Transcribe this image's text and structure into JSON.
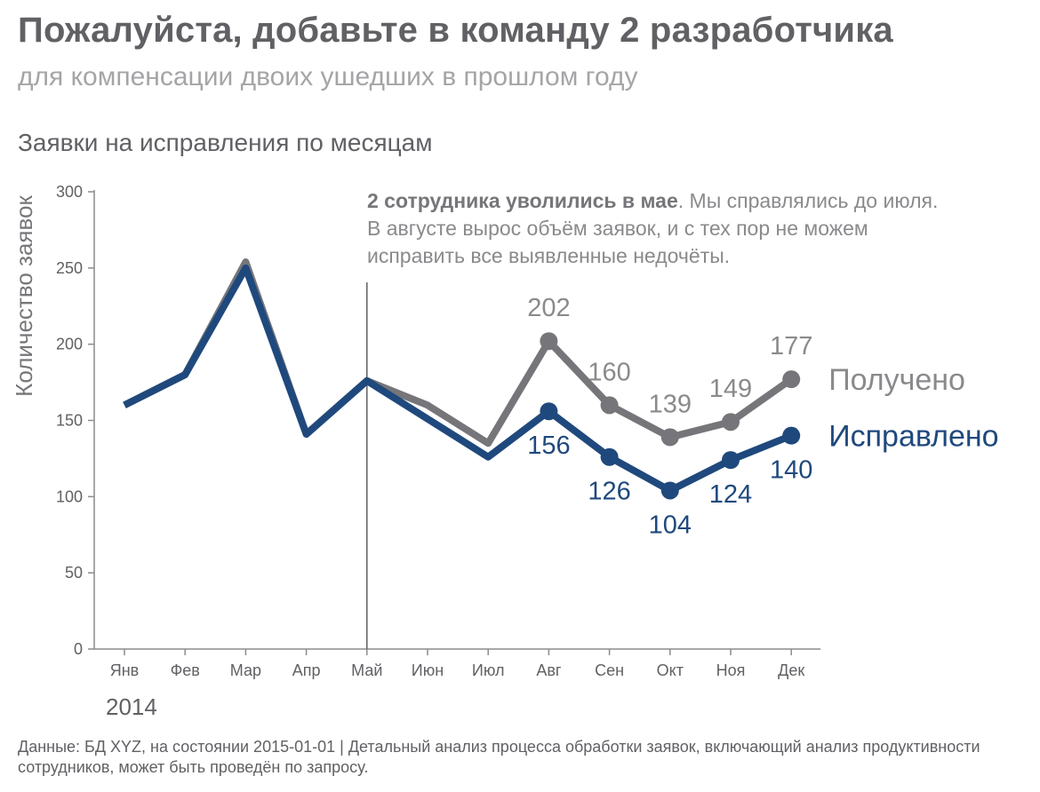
{
  "header": {
    "title": "Пожалуйста, добавьте в команду 2 разработчика",
    "subtitle": "для компенсации двоих ушедших в прошлом году"
  },
  "annotation": {
    "bold": "2 сотрудника уволились в мае",
    "rest": ". Мы справлялись до июля. В августе вырос объём заявок, и с тех пор не можем исправить все выявленные недочёты."
  },
  "footer": {
    "text": "Данные: БД XYZ, на состоянии 2015-01-01 | Детальный анализ процесса обработки заявок, включающий анализ продуктивности сотрудников, может быть проведён по запросу."
  },
  "chart_data": {
    "type": "line",
    "title": "Заявки на исправления по месяцам",
    "ylabel": "Количество заявок",
    "xlabel": "",
    "year_label": "2014",
    "categories": [
      "Янв",
      "Фев",
      "Мар",
      "Апр",
      "Май",
      "Июн",
      "Июл",
      "Авг",
      "Сен",
      "Окт",
      "Ноя",
      "Дек"
    ],
    "ylim": [
      0,
      300
    ],
    "yticks": [
      0,
      50,
      100,
      150,
      200,
      250,
      300
    ],
    "grid": false,
    "event_marker": {
      "category": "Май"
    },
    "series": [
      {
        "name": "Получено",
        "color": "#76767a",
        "label_color": "#8a8a8d",
        "values": [
          160,
          180,
          254,
          141,
          176,
          160,
          135,
          202,
          160,
          139,
          149,
          177
        ],
        "markers_from_index": 7,
        "labels_from_index": 7
      },
      {
        "name": "Исправлено",
        "color": "#1f497d",
        "label_color": "#1f497d",
        "values": [
          160,
          180,
          250,
          141,
          176,
          151,
          126,
          156,
          126,
          104,
          124,
          140
        ],
        "markers_from_index": 7,
        "labels_from_index": 7
      }
    ]
  }
}
